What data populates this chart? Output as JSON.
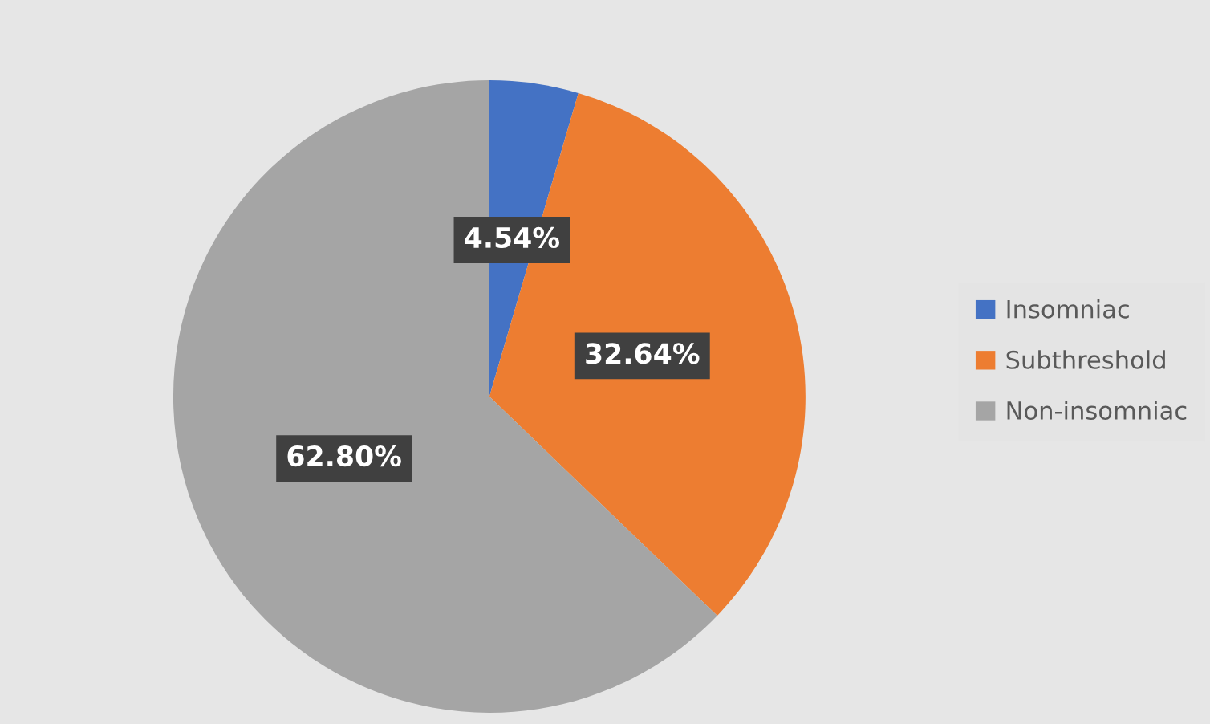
{
  "chart_data": {
    "type": "pie",
    "categories": [
      "Insomniac",
      "Subthreshold",
      "Non-insomniac"
    ],
    "values": [
      4.54,
      32.64,
      62.8
    ],
    "colors": [
      "#4472c4",
      "#ed7d31",
      "#a5a5a5"
    ],
    "value_labels": [
      "4.54%",
      "32.64%",
      "62.80%"
    ],
    "legend": "right"
  }
}
